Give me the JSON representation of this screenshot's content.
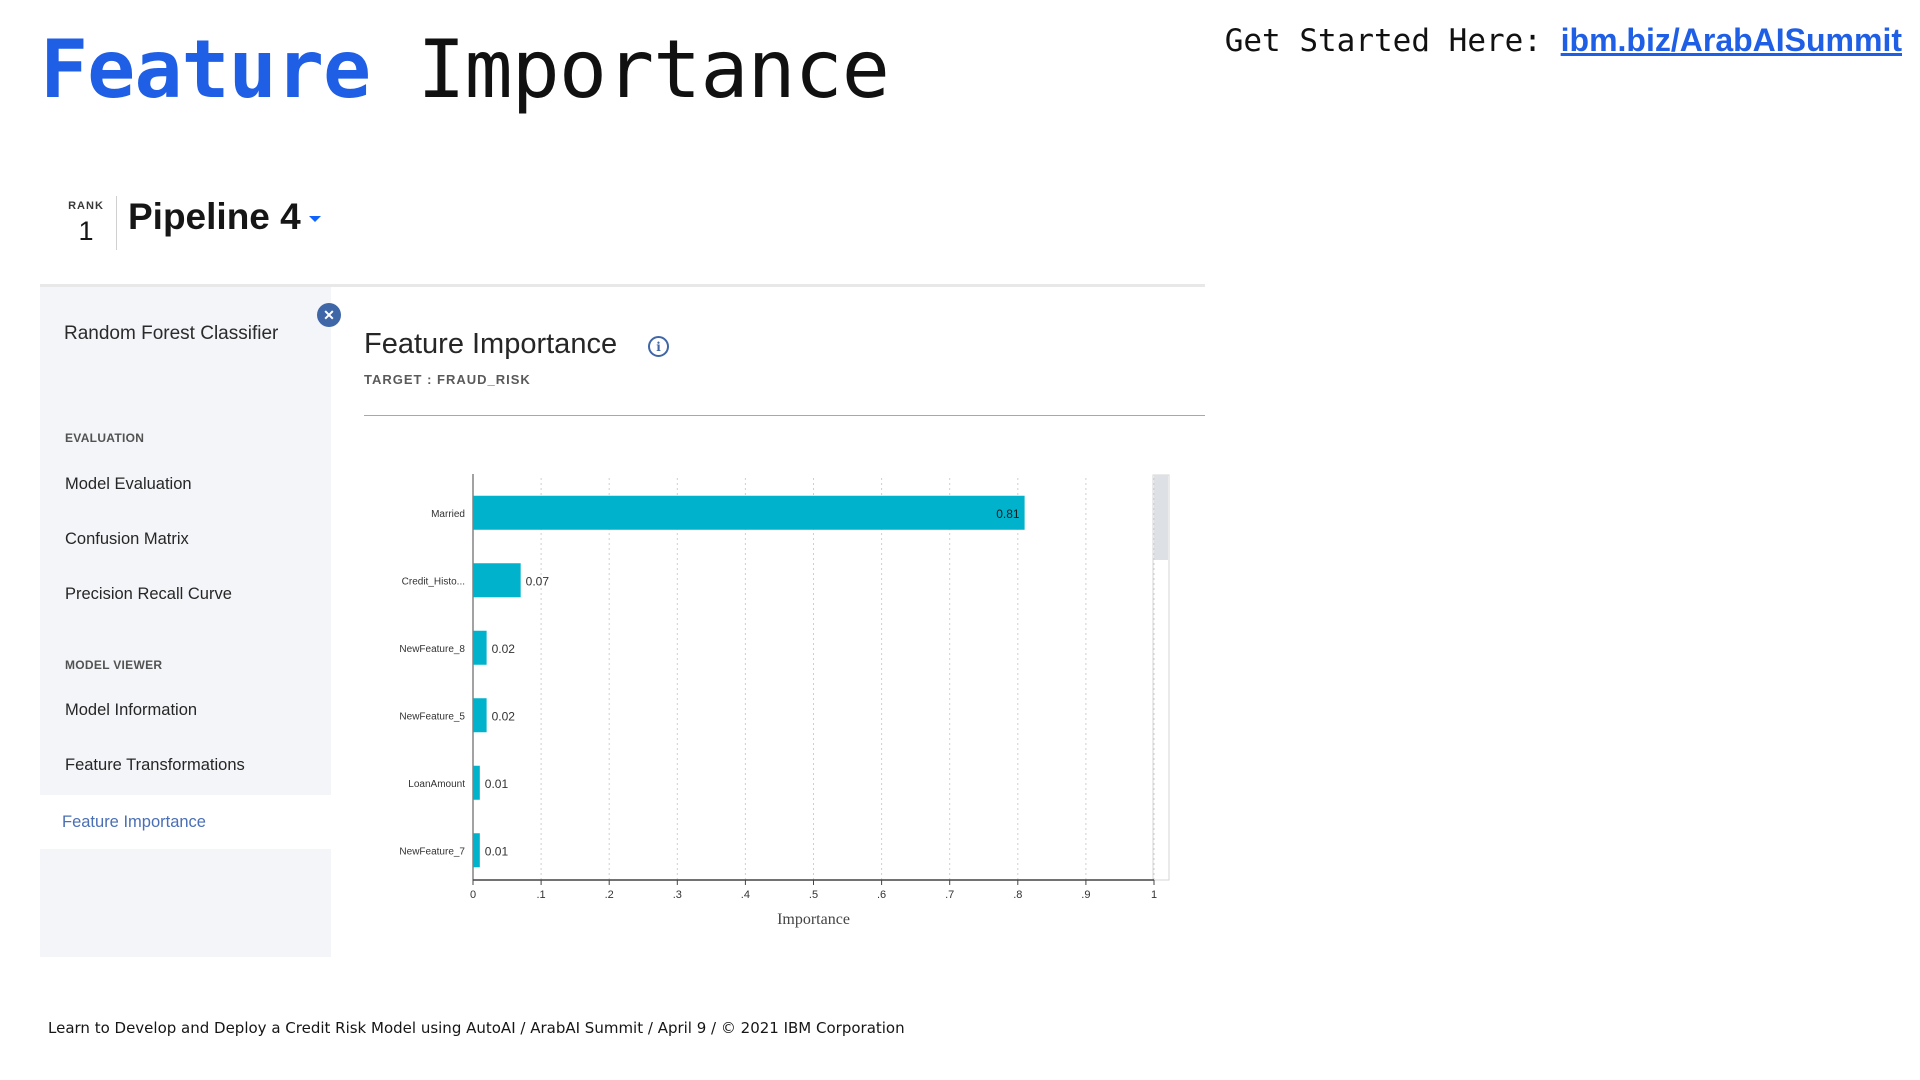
{
  "slide": {
    "title_accent": "Feature",
    "title_rest": "Importance",
    "get_started_label": "Get Started Here:",
    "get_started_link": "ibm.biz/ArabAISummit",
    "footer": "Learn to Develop and Deploy a Credit Risk Model using AutoAI / ArabAI Summit / April 9 / © 2021 IBM Corporation"
  },
  "header": {
    "rank_label": "RANK",
    "rank_value": "1",
    "pipeline_name": "Pipeline 4"
  },
  "sidebar": {
    "model_name": "Random Forest Classifier",
    "sections": [
      {
        "label": "EVALUATION",
        "items": [
          "Model Evaluation",
          "Confusion Matrix",
          "Precision Recall Curve"
        ]
      },
      {
        "label": "MODEL VIEWER",
        "items": [
          "Model Information",
          "Feature Transformations",
          "Feature Importance"
        ]
      }
    ],
    "active_item": "Feature Importance",
    "close_icon": "close-icon"
  },
  "main": {
    "title": "Feature Importance",
    "info_icon": "information-icon",
    "target": "TARGET : FRAUD_RISK"
  },
  "chart_data": {
    "type": "bar",
    "orientation": "horizontal",
    "categories": [
      "Married",
      "Credit_Histo...",
      "NewFeature_8",
      "NewFeature_5",
      "LoanAmount",
      "NewFeature_7"
    ],
    "values": [
      0.81,
      0.07,
      0.02,
      0.02,
      0.01,
      0.01
    ],
    "value_labels": [
      "0.81",
      "0.07",
      "0.02",
      "0.02",
      "0.01",
      "0.01"
    ],
    "xlabel": "Importance",
    "ylabel": "",
    "xlim": [
      0,
      1
    ],
    "x_ticks": [
      "0",
      ".1",
      ".2",
      ".3",
      ".4",
      ".5",
      ".6",
      ".7",
      ".8",
      ".9",
      "1"
    ],
    "grid": true,
    "bar_color": "#00b2cb"
  }
}
